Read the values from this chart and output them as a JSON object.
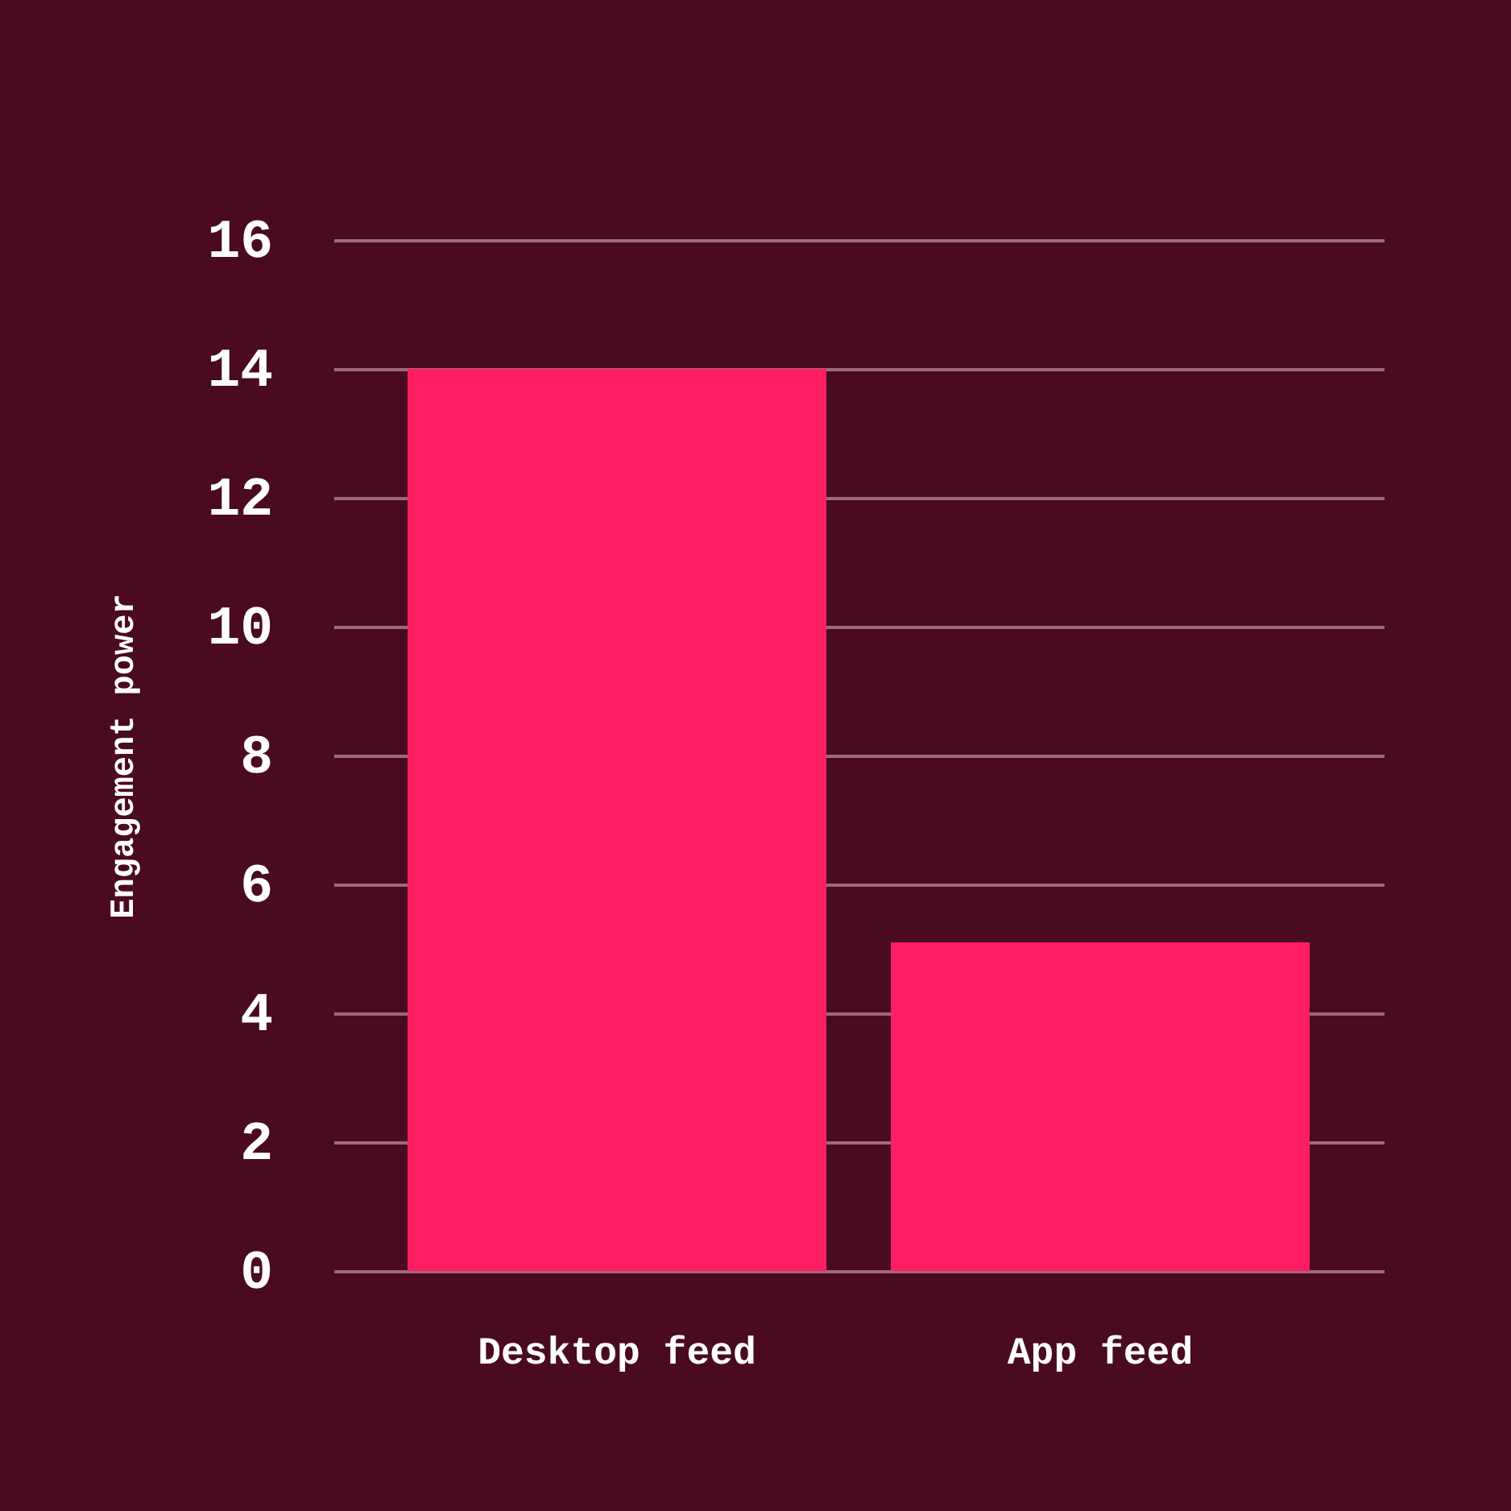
{
  "chart_data": {
    "type": "bar",
    "ylabel": "Engagement power",
    "categories": [
      "Desktop feed",
      "App feed"
    ],
    "values": [
      14,
      5.1
    ],
    "color": "#ff1d63",
    "ylim": [
      0,
      16
    ],
    "yticks": [
      0,
      2,
      4,
      6,
      8,
      10,
      12,
      14,
      16
    ],
    "grid": "y"
  }
}
